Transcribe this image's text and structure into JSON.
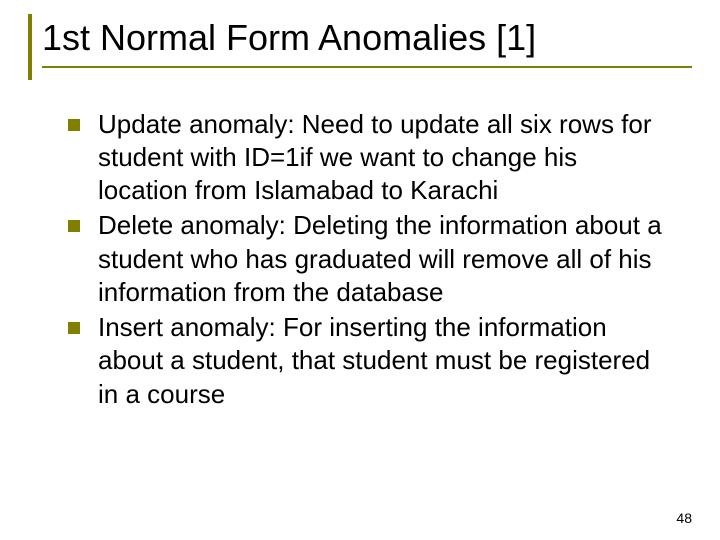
{
  "slide": {
    "title": "1st Normal Form Anomalies [1]",
    "bullets": [
      "Update anomaly: Need to update all six rows for student with ID=1if we want to change his location from Islamabad to Karachi",
      "Delete anomaly: Deleting the information about a student who has graduated will remove all of his information from the database",
      "Insert anomaly: For inserting the information about a student, that student must be registered in a course"
    ],
    "page_number": "48",
    "colors": {
      "accent": "#808000",
      "text": "#000000",
      "background": "#ffffff"
    },
    "typography": {
      "title_fontsize": 36,
      "body_fontsize": 26,
      "page_number_fontsize": 14
    }
  }
}
